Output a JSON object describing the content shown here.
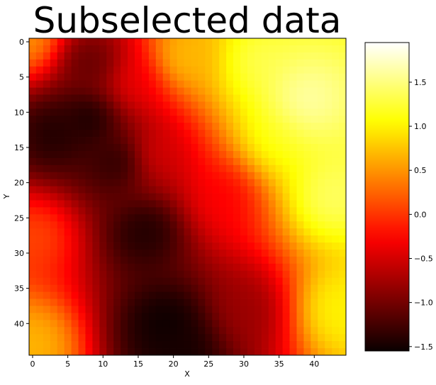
{
  "chart_data": {
    "type": "heatmap",
    "title": "Subselected data",
    "xlabel": "X",
    "ylabel": "Y",
    "colormap": "hot",
    "grid_size": [
      45,
      45
    ],
    "x_ticks": [
      0,
      5,
      10,
      15,
      20,
      25,
      30,
      35,
      40
    ],
    "y_ticks": [
      0,
      5,
      10,
      15,
      20,
      25,
      30,
      35,
      40
    ],
    "value_range": [
      -1.55,
      1.95
    ],
    "colorbar_ticks": [
      {
        "value": 1.5,
        "label": "1.5"
      },
      {
        "value": 1.0,
        "label": "1.0"
      },
      {
        "value": 0.5,
        "label": "0.5"
      },
      {
        "value": 0.0,
        "label": "0.0"
      },
      {
        "value": -0.5,
        "label": "−0.5"
      },
      {
        "value": -1.0,
        "label": "−1.0"
      },
      {
        "value": -1.5,
        "label": "−1.5"
      }
    ],
    "grid": false,
    "y_axis_inverted": true,
    "field": [
      {
        "x": 0,
        "y": 0,
        "value": 0.6,
        "spread": 4
      },
      {
        "x": 0,
        "y": 43,
        "value": 0.7,
        "spread": 4
      },
      {
        "x": 1,
        "y": 27,
        "value": 0.2,
        "spread": 5
      },
      {
        "x": 3,
        "y": 13,
        "value": -1.45,
        "spread": 3
      },
      {
        "x": 8,
        "y": 11,
        "value": -1.5,
        "spread": 3
      },
      {
        "x": 12,
        "y": 17,
        "value": -1.4,
        "spread": 3
      },
      {
        "x": 16,
        "y": 27,
        "value": -1.45,
        "spread": 3
      },
      {
        "x": 19,
        "y": 40,
        "value": -1.55,
        "spread": 3
      },
      {
        "x": 21,
        "y": 44,
        "value": -1.5,
        "spread": 3
      },
      {
        "x": 8,
        "y": 3,
        "value": -1.1,
        "spread": 3
      },
      {
        "x": 17,
        "y": 16,
        "value": -0.4,
        "spread": 4
      },
      {
        "x": 30,
        "y": 38,
        "value": -0.8,
        "spread": 4
      },
      {
        "x": 27,
        "y": 22,
        "value": -0.3,
        "spread": 4
      },
      {
        "x": 14,
        "y": 6,
        "value": -0.3,
        "spread": 4
      },
      {
        "x": 38,
        "y": 9,
        "value": 1.95,
        "spread": 6
      },
      {
        "x": 30,
        "y": 3,
        "value": 1.6,
        "spread": 6
      },
      {
        "x": 42,
        "y": 22,
        "value": 1.5,
        "spread": 5
      },
      {
        "x": 44,
        "y": 38,
        "value": 1.0,
        "spread": 3
      },
      {
        "x": 34,
        "y": 14,
        "value": 1.2,
        "spread": 5
      },
      {
        "x": 22,
        "y": 2,
        "value": 0.7,
        "spread": 3
      }
    ]
  }
}
